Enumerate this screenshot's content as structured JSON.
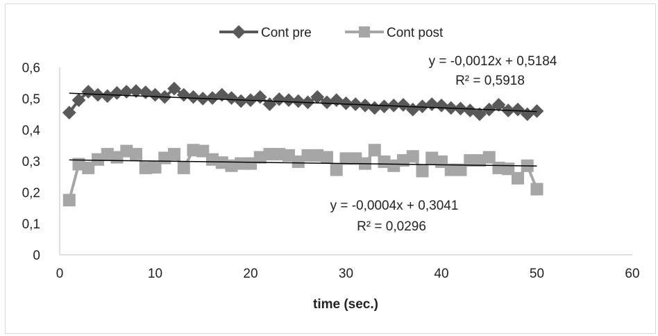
{
  "chart_data": {
    "type": "scatter",
    "title": "",
    "xlabel": "time (sec.)",
    "ylabel": "",
    "xlim": [
      0,
      60
    ],
    "ylim": [
      0,
      0.6
    ],
    "xticks": [
      "0",
      "10",
      "20",
      "30",
      "40",
      "50",
      "60"
    ],
    "yticks": [
      "0",
      "0,1",
      "0,2",
      "0,3",
      "0,4",
      "0,5",
      "0,6"
    ],
    "grid": false,
    "legend": "top",
    "x": [
      1,
      2,
      3,
      4,
      5,
      6,
      7,
      8,
      9,
      10,
      11,
      12,
      13,
      14,
      15,
      16,
      17,
      18,
      19,
      20,
      21,
      22,
      23,
      24,
      25,
      26,
      27,
      28,
      29,
      30,
      31,
      32,
      33,
      34,
      35,
      36,
      37,
      38,
      39,
      40,
      41,
      42,
      43,
      44,
      45,
      46,
      47,
      48,
      49,
      50
    ],
    "series": [
      {
        "name": "Cont pre",
        "color": "#595959",
        "marker": "diamond",
        "values": [
          0.455,
          0.495,
          0.522,
          0.512,
          0.508,
          0.518,
          0.522,
          0.524,
          0.52,
          0.512,
          0.505,
          0.532,
          0.512,
          0.505,
          0.5,
          0.502,
          0.512,
          0.502,
          0.492,
          0.495,
          0.505,
          0.482,
          0.498,
          0.495,
          0.492,
          0.488,
          0.505,
          0.488,
          0.495,
          0.485,
          0.482,
          0.478,
          0.47,
          0.475,
          0.478,
          0.48,
          0.465,
          0.475,
          0.482,
          0.478,
          0.47,
          0.468,
          0.462,
          0.45,
          0.465,
          0.48,
          0.462,
          0.465,
          0.45,
          0.46
        ],
        "trendline": {
          "slope": -0.0012,
          "intercept": 0.5184,
          "equation": "y = -0,0012x + 0,5184",
          "r2": "R² = 0,5918"
        }
      },
      {
        "name": "Cont post",
        "color": "#a6a6a6",
        "marker": "square",
        "values": [
          0.175,
          0.29,
          0.278,
          0.305,
          0.322,
          0.312,
          0.332,
          0.322,
          0.278,
          0.28,
          0.31,
          0.322,
          0.278,
          0.335,
          0.332,
          0.305,
          0.295,
          0.285,
          0.292,
          0.292,
          0.312,
          0.322,
          0.322,
          0.318,
          0.298,
          0.318,
          0.318,
          0.312,
          0.272,
          0.308,
          0.308,
          0.292,
          0.335,
          0.298,
          0.285,
          0.302,
          0.315,
          0.268,
          0.31,
          0.298,
          0.272,
          0.272,
          0.302,
          0.302,
          0.312,
          0.278,
          0.275,
          0.245,
          0.285,
          0.21
        ],
        "trendline": {
          "slope": -0.0004,
          "intercept": 0.3041,
          "equation": "y = -0,0004x + 0,3041",
          "r2": "R² = 0,0296"
        }
      }
    ]
  }
}
